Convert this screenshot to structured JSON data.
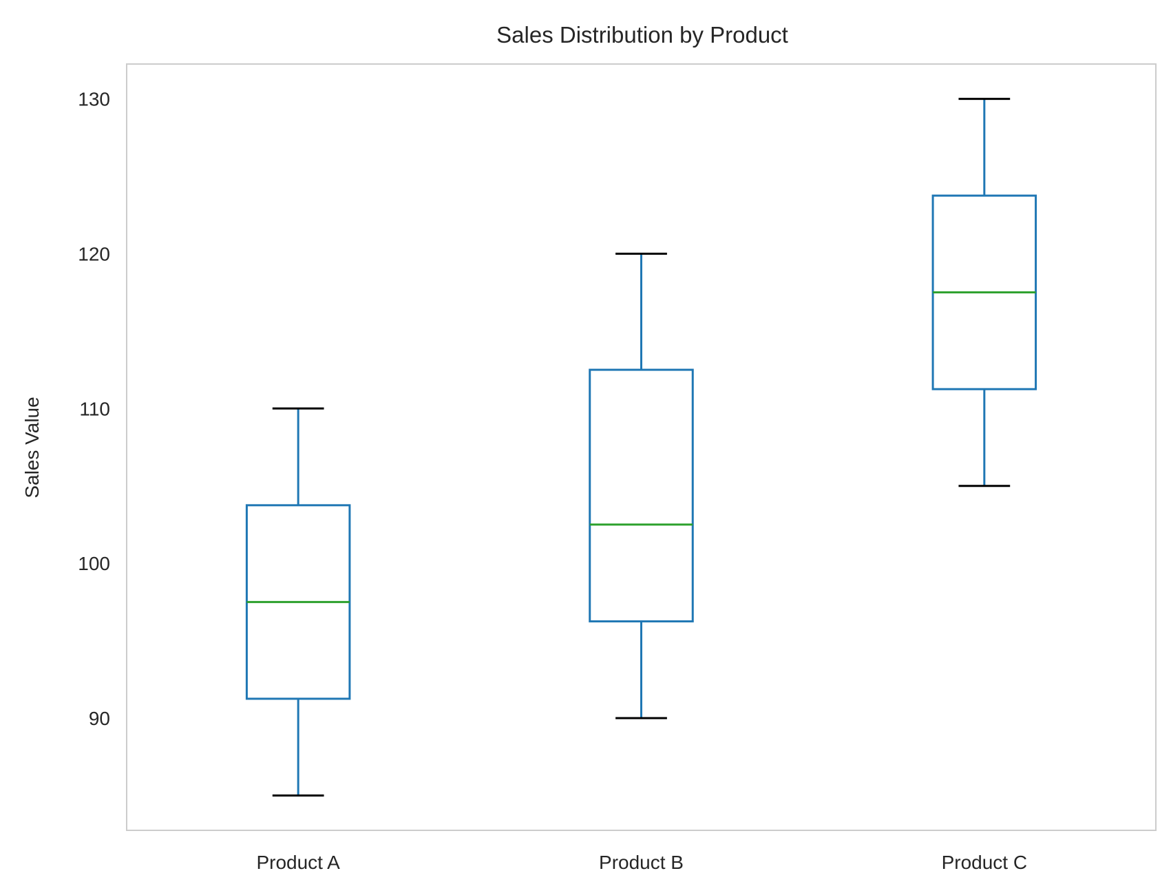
{
  "chart_data": {
    "type": "box",
    "title": "Sales Distribution by Product",
    "xlabel": "",
    "ylabel": "Sales Value",
    "categories": [
      "Product A",
      "Product B",
      "Product C"
    ],
    "boxes": [
      {
        "category": "Product A",
        "whisker_low": 85,
        "q1": 91.25,
        "median": 97.5,
        "q3": 103.75,
        "whisker_high": 110
      },
      {
        "category": "Product B",
        "whisker_low": 90,
        "q1": 96.25,
        "median": 102.5,
        "q3": 112.5,
        "whisker_high": 120
      },
      {
        "category": "Product C",
        "whisker_low": 105,
        "q1": 111.25,
        "median": 117.5,
        "q3": 123.75,
        "whisker_high": 130
      }
    ],
    "yticks": [
      90,
      100,
      110,
      120,
      130
    ],
    "ylim": [
      82.75,
      132.25
    ],
    "grid": false,
    "legend": "none",
    "colors": {
      "box": "#1f77b4",
      "median": "#2ca02c",
      "caps": "#000000",
      "frame": "#cccccc"
    }
  }
}
